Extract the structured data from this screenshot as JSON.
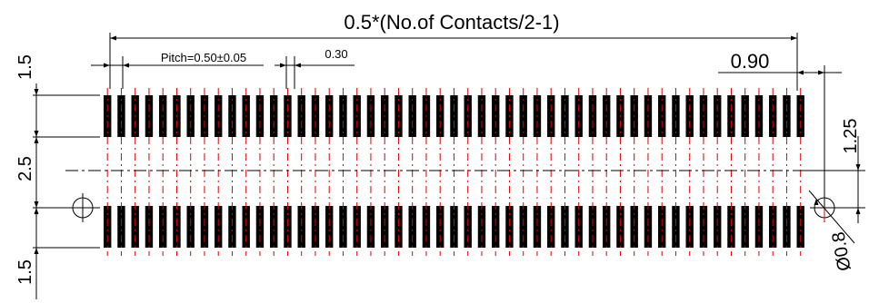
{
  "drawing": {
    "top_dimension": "0.5*(No.of Contacts/2-1)",
    "pitch_label": "Pitch=0.50±0.05",
    "pad_width_label": "0.30",
    "right_offset_label": "0.90",
    "left_top_label": "1.5",
    "left_middle_label": "2.5",
    "left_bottom_label": "1.5",
    "right_vertical_label": "1.25",
    "hole_label": "Ø0.8"
  },
  "colors": {
    "line": "#000000",
    "pad": "#000000",
    "centerline": "#e00000",
    "background": "#ffffff"
  }
}
